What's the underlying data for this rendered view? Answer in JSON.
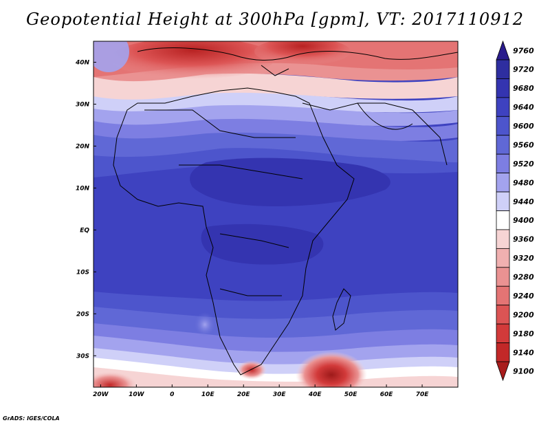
{
  "title": "Geopotential Height at 300hPa [gpm], VT: 2017110912",
  "footer": "GrADS: IGES/COLA",
  "map": {
    "lon_ticks": [
      {
        "label": "20W",
        "lon": -20
      },
      {
        "label": "10W",
        "lon": -10
      },
      {
        "label": "0",
        "lon": 0
      },
      {
        "label": "10E",
        "lon": 10
      },
      {
        "label": "20E",
        "lon": 20
      },
      {
        "label": "30E",
        "lon": 30
      },
      {
        "label": "40E",
        "lon": 40
      },
      {
        "label": "50E",
        "lon": 50
      },
      {
        "label": "60E",
        "lon": 60
      },
      {
        "label": "70E",
        "lon": 70
      }
    ],
    "lat_ticks": [
      {
        "label": "40N",
        "lat": 40
      },
      {
        "label": "30N",
        "lat": 30
      },
      {
        "label": "20N",
        "lat": 20
      },
      {
        "label": "10N",
        "lat": 10
      },
      {
        "label": "EQ",
        "lat": 0
      },
      {
        "label": "10S",
        "lat": -10
      },
      {
        "label": "20S",
        "lat": -20
      },
      {
        "label": "30S",
        "lat": -30
      }
    ]
  },
  "colorbar": {
    "levels": [
      {
        "label": "9760",
        "color": "#2a1c8c"
      },
      {
        "label": "9720",
        "color": "#2e2ea0"
      },
      {
        "label": "9680",
        "color": "#3434b0"
      },
      {
        "label": "9640",
        "color": "#3e42c0"
      },
      {
        "label": "9600",
        "color": "#4d55cc"
      },
      {
        "label": "9560",
        "color": "#6068d6"
      },
      {
        "label": "9520",
        "color": "#7d7ee2"
      },
      {
        "label": "9480",
        "color": "#a3a3ee"
      },
      {
        "label": "9440",
        "color": "#cfd0f8"
      },
      {
        "label": "9400",
        "color": "#ffffff"
      },
      {
        "label": "9360",
        "color": "#f6d4d4"
      },
      {
        "label": "9320",
        "color": "#f0b0b0"
      },
      {
        "label": "9280",
        "color": "#ea9292"
      },
      {
        "label": "9240",
        "color": "#e47474"
      },
      {
        "label": "9200",
        "color": "#dc5454"
      },
      {
        "label": "9180",
        "color": "#d23a3a"
      },
      {
        "label": "9140",
        "color": "#c22828"
      },
      {
        "label": "9100",
        "color": "#a81c1c"
      }
    ]
  }
}
